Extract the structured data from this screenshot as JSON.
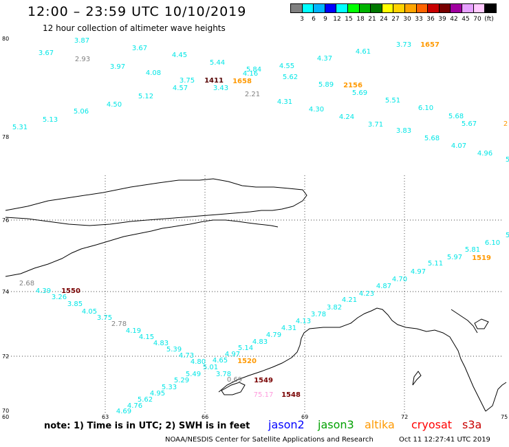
{
  "header": {
    "title": "12:00 – 23:59 UTC 10/10/2019",
    "subtitle": "12 hour collection of altimeter wave heights"
  },
  "legend": {
    "colors": [
      "#808080",
      "#00ffff",
      "#00b4ff",
      "#0000ff",
      "#00ffff",
      "#00ff00",
      "#00b400",
      "#007800",
      "#ffff00",
      "#ffd200",
      "#ffa500",
      "#ff6400",
      "#c80000",
      "#780000",
      "#a000a0",
      "#e6a0ff",
      "#ffc8ff",
      "#000000"
    ],
    "labels": [
      "3",
      "6",
      "9",
      "12",
      "15",
      "18",
      "21",
      "24",
      "27",
      "30",
      "33",
      "36",
      "39",
      "42",
      "45",
      "70",
      "(ft)"
    ]
  },
  "axes": {
    "lat_labels": [
      {
        "text": "80"
      },
      {
        "text": "78"
      },
      {
        "text": "76"
      },
      {
        "text": "74"
      },
      {
        "text": "72"
      },
      {
        "text": "70"
      }
    ],
    "lon_labels": [
      {
        "text": "60"
      },
      {
        "text": "63"
      },
      {
        "text": "66"
      },
      {
        "text": "69"
      },
      {
        "text": "72"
      },
      {
        "text": "75"
      }
    ]
  },
  "observations": [
    {
      "t": "3.87",
      "c": "#00e6e6"
    },
    {
      "t": "3.67",
      "c": "#00e6e6"
    },
    {
      "t": "2.93",
      "c": "#808080"
    },
    {
      "t": "3.67",
      "c": "#00e6e6"
    },
    {
      "t": "4.45",
      "c": "#00e6e6"
    },
    {
      "t": "3.97",
      "c": "#00e6e6"
    },
    {
      "t": "4.08",
      "c": "#00e6e6"
    },
    {
      "t": "5.44",
      "c": "#00e6e6"
    },
    {
      "t": "5.84",
      "c": "#00e6e6"
    },
    {
      "t": "4.16",
      "c": "#00e6e6"
    },
    {
      "t": "4.55",
      "c": "#00e6e6"
    },
    {
      "t": "4.37",
      "c": "#00e6e6"
    },
    {
      "t": "4.61",
      "c": "#00e6e6"
    },
    {
      "t": "3.73",
      "c": "#00e6e6"
    },
    {
      "t": "1657",
      "c": "#ff9900"
    },
    {
      "t": "3.75",
      "c": "#00e6e6"
    },
    {
      "t": "1411",
      "c": "#550000"
    },
    {
      "t": "1658",
      "c": "#ff9900"
    },
    {
      "t": "5.62",
      "c": "#00e6e6"
    },
    {
      "t": "4.57",
      "c": "#00e6e6"
    },
    {
      "t": "3.43",
      "c": "#00e6e6"
    },
    {
      "t": "5.89",
      "c": "#00e6e6"
    },
    {
      "t": "2156",
      "c": "#ff9900"
    },
    {
      "t": "5.12",
      "c": "#00e6e6"
    },
    {
      "t": "2.21",
      "c": "#808080"
    },
    {
      "t": "5.69",
      "c": "#00e6e6"
    },
    {
      "t": "4.50",
      "c": "#00e6e6"
    },
    {
      "t": "4.31",
      "c": "#00e6e6"
    },
    {
      "t": "5.51",
      "c": "#00e6e6"
    },
    {
      "t": "5.06",
      "c": "#00e6e6"
    },
    {
      "t": "4.30",
      "c": "#00e6e6"
    },
    {
      "t": "6.10",
      "c": "#00e6e6"
    },
    {
      "t": "5.13",
      "c": "#00e6e6"
    },
    {
      "t": "4.24",
      "c": "#00e6e6"
    },
    {
      "t": "5.68",
      "c": "#00e6e6"
    },
    {
      "t": "5.31",
      "c": "#00e6e6"
    },
    {
      "t": "3.71",
      "c": "#00e6e6"
    },
    {
      "t": "5.67",
      "c": "#00e6e6"
    },
    {
      "t": "2",
      "c": "#ff9900"
    },
    {
      "t": "3.83",
      "c": "#00e6e6"
    },
    {
      "t": "5.68",
      "c": "#00e6e6"
    },
    {
      "t": "4.07",
      "c": "#00e6e6"
    },
    {
      "t": "4.96",
      "c": "#00e6e6"
    },
    {
      "t": "5",
      "c": "#00e6e6"
    },
    {
      "t": "5",
      "c": "#00e6e6"
    },
    {
      "t": "6.10",
      "c": "#00e6e6"
    },
    {
      "t": "5.81",
      "c": "#00e6e6"
    },
    {
      "t": "5.97",
      "c": "#00e6e6"
    },
    {
      "t": "1519",
      "c": "#ff9900"
    },
    {
      "t": "5.11",
      "c": "#00e6e6"
    },
    {
      "t": "4.97",
      "c": "#00e6e6"
    },
    {
      "t": "4.70",
      "c": "#00e6e6"
    },
    {
      "t": "4.87",
      "c": "#00e6e6"
    },
    {
      "t": "4.23",
      "c": "#00e6e6"
    },
    {
      "t": "4.21",
      "c": "#00e6e6"
    },
    {
      "t": "3.82",
      "c": "#00e6e6"
    },
    {
      "t": "3.78",
      "c": "#00e6e6"
    },
    {
      "t": "4.13",
      "c": "#00e6e6"
    },
    {
      "t": "4.31",
      "c": "#00e6e6"
    },
    {
      "t": "4.79",
      "c": "#00e6e6"
    },
    {
      "t": "4.83",
      "c": "#00e6e6"
    },
    {
      "t": "5.14",
      "c": "#00e6e6"
    },
    {
      "t": "4.97",
      "c": "#00e6e6"
    },
    {
      "t": "4.65",
      "c": "#00e6e6"
    },
    {
      "t": "1520",
      "c": "#ff9900"
    },
    {
      "t": "2.68",
      "c": "#808080"
    },
    {
      "t": "4.39",
      "c": "#00e6e6"
    },
    {
      "t": "1550",
      "c": "#780000"
    },
    {
      "t": "3.26",
      "c": "#00e6e6"
    },
    {
      "t": "3.85",
      "c": "#00e6e6"
    },
    {
      "t": "4.05",
      "c": "#00e6e6"
    },
    {
      "t": "3.75",
      "c": "#00e6e6"
    },
    {
      "t": "2.78",
      "c": "#808080"
    },
    {
      "t": "4.19",
      "c": "#00e6e6"
    },
    {
      "t": "4.15",
      "c": "#00e6e6"
    },
    {
      "t": "4.83",
      "c": "#00e6e6"
    },
    {
      "t": "5.39",
      "c": "#00e6e6"
    },
    {
      "t": "4.73",
      "c": "#00e6e6"
    },
    {
      "t": "4.80",
      "c": "#00e6e6"
    },
    {
      "t": "5.01",
      "c": "#00e6e6"
    },
    {
      "t": "3.78",
      "c": "#00e6e6"
    },
    {
      "t": "5.49",
      "c": "#00e6e6"
    },
    {
      "t": "5.29",
      "c": "#00e6e6"
    },
    {
      "t": "0.69",
      "c": "#808080"
    },
    {
      "t": "1549",
      "c": "#780000"
    },
    {
      "t": "5.33",
      "c": "#00e6e6"
    },
    {
      "t": "4.95",
      "c": "#00e6e6"
    },
    {
      "t": "75.17",
      "c": "#ff99dd"
    },
    {
      "t": "1548",
      "c": "#780000"
    },
    {
      "t": "5.62",
      "c": "#00e6e6"
    },
    {
      "t": "4.76",
      "c": "#00e6e6"
    },
    {
      "t": "4.69",
      "c": "#00e6e6"
    }
  ],
  "footer": {
    "note": "note:  1) Time is in UTC;  2) SWH is in feet",
    "satellites": [
      {
        "name": "jason2",
        "color": "#0000ff"
      },
      {
        "name": "jason3",
        "color": "#00a000"
      },
      {
        "name": "altika",
        "color": "#ff9900"
      },
      {
        "name": "cryosat",
        "color": "#ff0000"
      },
      {
        "name": "s3a",
        "color": "#c80000"
      }
    ],
    "credit": "NOAA/NESDIS Center for Satellite Applications and Research",
    "timestamp": "Oct 11 12:27:41 UTC 2019"
  }
}
